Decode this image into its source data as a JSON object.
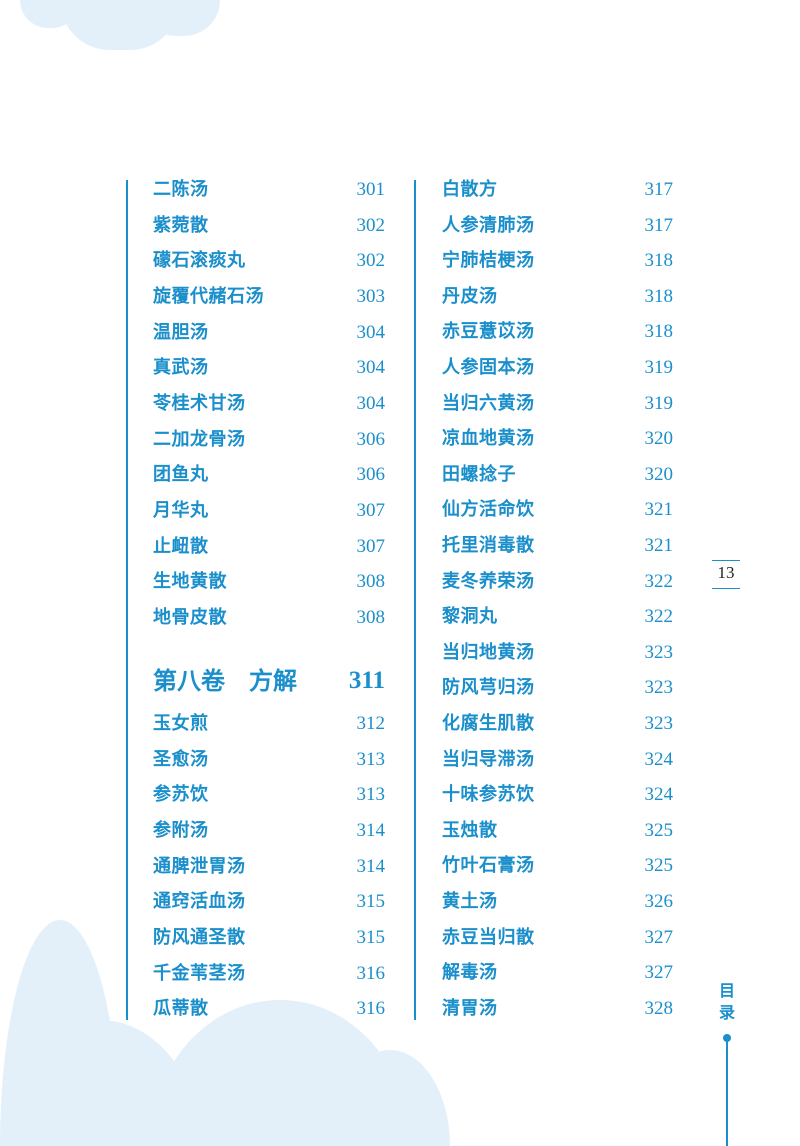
{
  "left_column": [
    {
      "title": "二陈汤",
      "page": "301"
    },
    {
      "title": "紫菀散",
      "page": "302"
    },
    {
      "title": "礞石滚痰丸",
      "page": "302"
    },
    {
      "title": "旋覆代赭石汤",
      "page": "303"
    },
    {
      "title": "温胆汤",
      "page": "304"
    },
    {
      "title": "真武汤",
      "page": "304"
    },
    {
      "title": "苓桂术甘汤",
      "page": "304"
    },
    {
      "title": "二加龙骨汤",
      "page": "306"
    },
    {
      "title": "团鱼丸",
      "page": "306"
    },
    {
      "title": "月华丸",
      "page": "307"
    },
    {
      "title": "止衄散",
      "page": "307"
    },
    {
      "title": "生地黄散",
      "page": "308"
    },
    {
      "title": "地骨皮散",
      "page": "308"
    }
  ],
  "section": {
    "title": "第八卷　方解",
    "page": "311"
  },
  "left_column_after": [
    {
      "title": "玉女煎",
      "page": "312"
    },
    {
      "title": "圣愈汤",
      "page": "313"
    },
    {
      "title": "参苏饮",
      "page": "313"
    },
    {
      "title": "参附汤",
      "page": "314"
    },
    {
      "title": "通脾泄胃汤",
      "page": "314"
    },
    {
      "title": "通窍活血汤",
      "page": "315"
    },
    {
      "title": "防风通圣散",
      "page": "315"
    },
    {
      "title": "千金苇茎汤",
      "page": "316"
    },
    {
      "title": "瓜蒂散",
      "page": "316"
    }
  ],
  "right_column": [
    {
      "title": "白散方",
      "page": "317"
    },
    {
      "title": "人参清肺汤",
      "page": "317"
    },
    {
      "title": "宁肺桔梗汤",
      "page": "318"
    },
    {
      "title": "丹皮汤",
      "page": "318"
    },
    {
      "title": "赤豆薏苡汤",
      "page": "318"
    },
    {
      "title": "人参固本汤",
      "page": "319"
    },
    {
      "title": "当归六黄汤",
      "page": "319"
    },
    {
      "title": "凉血地黄汤",
      "page": "320"
    },
    {
      "title": "田螺捻子",
      "page": "320"
    },
    {
      "title": "仙方活命饮",
      "page": "321"
    },
    {
      "title": "托里消毒散",
      "page": "321"
    },
    {
      "title": "麦冬养荣汤",
      "page": "322"
    },
    {
      "title": "黎洞丸",
      "page": "322"
    },
    {
      "title": "当归地黄汤",
      "page": "323"
    },
    {
      "title": "防风芎归汤",
      "page": "323"
    },
    {
      "title": "化腐生肌散",
      "page": "323"
    },
    {
      "title": "当归导滞汤",
      "page": "324"
    },
    {
      "title": "十味参苏饮",
      "page": "324"
    },
    {
      "title": "玉烛散",
      "page": "325"
    },
    {
      "title": "竹叶石膏汤",
      "page": "325"
    },
    {
      "title": "黄土汤",
      "page": "326"
    },
    {
      "title": "赤豆当归散",
      "page": "327"
    },
    {
      "title": "解毒汤",
      "page": "327"
    },
    {
      "title": "清胃汤",
      "page": "328"
    }
  ],
  "page_number": "13",
  "side_label": "目录",
  "colors": {
    "accent": "#1b8fcb",
    "cloud": "#e3f0fa"
  }
}
